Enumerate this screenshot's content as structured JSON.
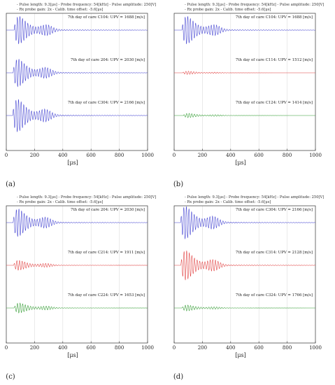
{
  "panels": [
    {
      "label": "(a)",
      "header_line1": "- Pulse length: 9.3[μs] - Probe frequency: 54[kHz] - Pulse amplitude: 250[V]",
      "header_line2": "- Rx probe gain: 2x      - Calib. time offset: -5.6[μs]",
      "traces": [
        {
          "title": "7th day of care C104: UPV = 1688 [m/s]",
          "color": "#3f3fd0",
          "amplitude": 0.85,
          "onset_us": 55
        },
        {
          "title": "7th day of care 204: UPV = 2030 [m/s]",
          "color": "#3f3fd0",
          "amplitude": 0.85,
          "onset_us": 48
        },
        {
          "title": "7th day of care C304: UPV = 2166 [m/s]",
          "color": "#3f3fd0",
          "amplitude": 1.0,
          "onset_us": 45
        }
      ]
    },
    {
      "label": "(b)",
      "header_line1": "- Pulse length: 9.3[μs] - Probe frequency: 54[kHz] - Pulse amplitude: 250[V]",
      "header_line2": "- Rx probe gain: 2x      - Calib. time offset: -5.6[μs]",
      "traces": [
        {
          "title": "7th day of care C104: UPV = 1688 [m/s]",
          "color": "#3f3fd0",
          "amplitude": 0.85,
          "onset_us": 55
        },
        {
          "title": "7th day of care C114: UPV = 1512 [m/s]",
          "color": "#e03c3c",
          "amplitude": 0.1,
          "onset_us": 60
        },
        {
          "title": "7th day of care C124: UPV = 1414 [m/s]",
          "color": "#2e9a2e",
          "amplitude": 0.13,
          "onset_us": 65
        }
      ]
    },
    {
      "label": "(c)",
      "header_line1": "- Pulse length: 9.3[μs] - Probe frequency: 54[kHz] - Pulse amplitude: 250[V]",
      "header_line2": "- Rx probe gain: 2x      - Calib. time offset: -5.6[μs]",
      "traces": [
        {
          "title": "7th day of care 204: UPV = 2030 [m/s]",
          "color": "#3f3fd0",
          "amplitude": 0.85,
          "onset_us": 48
        },
        {
          "title": "7th day of care C214: UPV = 1911 [m/s]",
          "color": "#e03c3c",
          "amplitude": 0.3,
          "onset_us": 52
        },
        {
          "title": "7th day of care C224: UPV = 1653 [m/s]",
          "color": "#2e9a2e",
          "amplitude": 0.3,
          "onset_us": 56
        }
      ]
    },
    {
      "label": "(d)",
      "header_line1": "- Pulse length: 9.3[μs] - Probe frequency: 54[kHz] - Pulse amplitude: 250[V]",
      "header_line2": "- Rx probe gain: 2x      - Calib. time offset: -5.6[μs]",
      "traces": [
        {
          "title": "7th day of care C304: UPV = 2166 [m/s]",
          "color": "#3f3fd0",
          "amplitude": 1.0,
          "onset_us": 45
        },
        {
          "title": "7th day of care C314: UPV = 2128 [m/s]",
          "color": "#e03c3c",
          "amplitude": 0.9,
          "onset_us": 47
        },
        {
          "title": "7th day of care C324: UPV = 1766 [m/s]",
          "color": "#2e9a2e",
          "amplitude": 0.18,
          "onset_us": 56
        }
      ]
    }
  ],
  "chart_data": [
    {
      "type": "line",
      "xlabel": "[μs]",
      "xlim": [
        0,
        1000
      ],
      "xticks": [
        0,
        200,
        400,
        600,
        800,
        1000
      ],
      "grid": true,
      "series": [
        {
          "name": "7th day of care C104: UPV = 1688 [m/s]"
        },
        {
          "name": "7th day of care 204: UPV = 2030 [m/s]"
        },
        {
          "name": "7th day of care C304: UPV = 2166 [m/s]"
        }
      ]
    },
    {
      "type": "line",
      "xlabel": "[μs]",
      "xlim": [
        0,
        1000
      ],
      "xticks": [
        0,
        200,
        400,
        600,
        800,
        1000
      ],
      "grid": true,
      "series": [
        {
          "name": "7th day of care C104: UPV = 1688 [m/s]"
        },
        {
          "name": "7th day of care C114: UPV = 1512 [m/s]"
        },
        {
          "name": "7th day of care C124: UPV = 1414 [m/s]"
        }
      ]
    },
    {
      "type": "line",
      "xlabel": "[μs]",
      "xlim": [
        0,
        1000
      ],
      "xticks": [
        0,
        200,
        400,
        600,
        800,
        1000
      ],
      "grid": true,
      "series": [
        {
          "name": "7th day of care 204: UPV = 2030 [m/s]"
        },
        {
          "name": "7th day of care C214: UPV = 1911 [m/s]"
        },
        {
          "name": "7th day of care C224: UPV = 1653 [m/s]"
        }
      ]
    },
    {
      "type": "line",
      "xlabel": "[μs]",
      "xlim": [
        0,
        1000
      ],
      "xticks": [
        0,
        200,
        400,
        600,
        800,
        1000
      ],
      "grid": true,
      "series": [
        {
          "name": "7th day of care C304: UPV = 2166 [m/s]"
        },
        {
          "name": "7th day of care C314: UPV = 2128 [m/s]"
        },
        {
          "name": "7th day of care C324: UPV = 1766 [m/s]"
        }
      ]
    }
  ]
}
